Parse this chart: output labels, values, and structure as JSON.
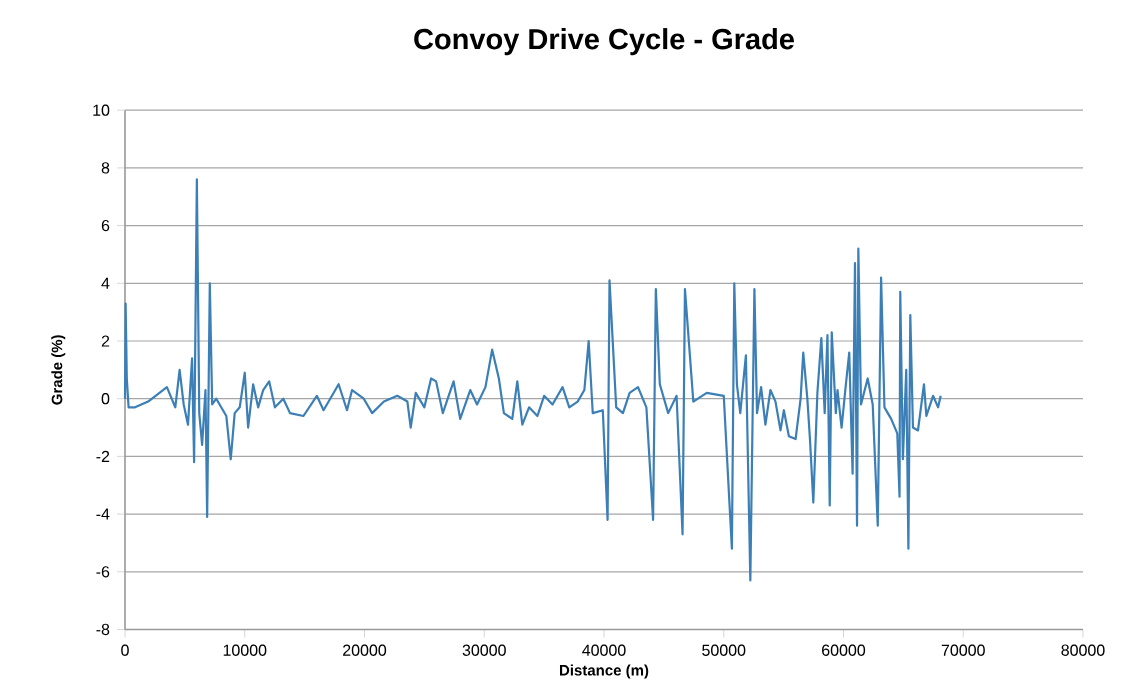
{
  "chart_data": {
    "type": "line",
    "title": "Convoy Drive Cycle - Grade",
    "xlabel": "Distance (m)",
    "ylabel": "Grade (%)",
    "xlim": [
      0,
      80000
    ],
    "xticks": [
      0,
      10000,
      20000,
      30000,
      40000,
      50000,
      60000,
      70000,
      80000
    ],
    "ylim": [
      -8,
      10
    ],
    "yticks": [
      -8,
      -6,
      -4,
      -2,
      0,
      2,
      4,
      6,
      8,
      10
    ],
    "grid": "y",
    "marker": "none",
    "line_style": "solid",
    "series": [
      {
        "color": "#3b7fb6",
        "x": [
          0,
          50,
          150,
          300,
          840,
          1930,
          3500,
          4200,
          4560,
          4900,
          5260,
          5600,
          5770,
          6000,
          6200,
          6440,
          6720,
          6860,
          7080,
          7280,
          7620,
          8460,
          8830,
          9160,
          9580,
          10000,
          10280,
          10700,
          11120,
          11540,
          12040,
          12520,
          13220,
          13780,
          14900,
          16020,
          16580,
          17840,
          18540,
          18960,
          19940,
          20640,
          21620,
          22740,
          23580,
          23860,
          24280,
          25000,
          25560,
          25980,
          26540,
          27440,
          27990,
          28830,
          29400,
          30100,
          30660,
          31220,
          31640,
          32340,
          32760,
          33180,
          33740,
          34440,
          35000,
          35700,
          36540,
          37100,
          37800,
          38360,
          38720,
          39060,
          39900,
          40300,
          40460,
          41020,
          41580,
          42140,
          42840,
          43540,
          44100,
          44330,
          44660,
          45360,
          46060,
          46560,
          46760,
          47460,
          48580,
          50000,
          50680,
          50880,
          51100,
          51380,
          51850,
          52220,
          52560,
          52780,
          53120,
          53480,
          53900,
          54320,
          54740,
          55020,
          55440,
          56000,
          56420,
          56640,
          56980,
          57200,
          57480,
          57820,
          58150,
          58430,
          58660,
          58850,
          59020,
          59360,
          59500,
          59840,
          60200,
          60480,
          60760,
          60960,
          61130,
          61240,
          61460,
          62020,
          62440,
          62860,
          63140,
          63420,
          63980,
          64490,
          64680,
          64740,
          64960,
          65240,
          65420,
          65580,
          65800,
          66220,
          66720,
          66920,
          67480,
          67900,
          68120
        ],
        "values": [
          0,
          3.3,
          0.7,
          -0.3,
          -0.3,
          -0.1,
          0.4,
          -0.3,
          1.0,
          -0.2,
          -0.9,
          1.4,
          -2.2,
          7.6,
          -0.5,
          -1.6,
          0.3,
          -4.1,
          4.0,
          -0.2,
          0,
          -0.6,
          -2.1,
          -0.5,
          -0.3,
          0.9,
          -1.0,
          0.5,
          -0.3,
          0.3,
          0.6,
          -0.3,
          0,
          -0.5,
          -0.6,
          0.1,
          -0.4,
          0.5,
          -0.4,
          0.3,
          0,
          -0.5,
          -0.1,
          0.1,
          -0.1,
          -1.0,
          0.2,
          -0.3,
          0.7,
          0.6,
          -0.5,
          0.6,
          -0.7,
          0.3,
          -0.2,
          0.4,
          1.7,
          0.7,
          -0.5,
          -0.7,
          0.6,
          -0.9,
          -0.3,
          -0.6,
          0.1,
          -0.2,
          0.4,
          -0.3,
          -0.1,
          0.3,
          2.0,
          -0.5,
          -0.4,
          -4.2,
          4.1,
          -0.3,
          -0.5,
          0.2,
          0.4,
          -0.3,
          -4.2,
          3.8,
          0.5,
          -0.5,
          0.1,
          -4.7,
          3.8,
          -0.1,
          0.2,
          0.1,
          -5.2,
          4.0,
          0.5,
          -0.5,
          1.5,
          -6.3,
          3.8,
          -0.5,
          0.4,
          -0.9,
          0.3,
          -0.1,
          -1.1,
          -0.4,
          -1.3,
          -1.4,
          0,
          1.6,
          0,
          -1.4,
          -3.6,
          0.2,
          2.1,
          -0.5,
          2.2,
          -3.7,
          2.3,
          -0.5,
          0.3,
          -1.0,
          0.5,
          1.6,
          -2.6,
          4.7,
          -4.4,
          5.2,
          -0.2,
          0.7,
          -0.2,
          -4.4,
          4.2,
          -0.3,
          -0.7,
          -1.2,
          -3.4,
          3.7,
          -2.1,
          1.0,
          -5.2,
          2.9,
          -1.0,
          -1.1,
          0.5,
          -0.6,
          0.1,
          -0.3,
          0.1
        ]
      }
    ]
  }
}
